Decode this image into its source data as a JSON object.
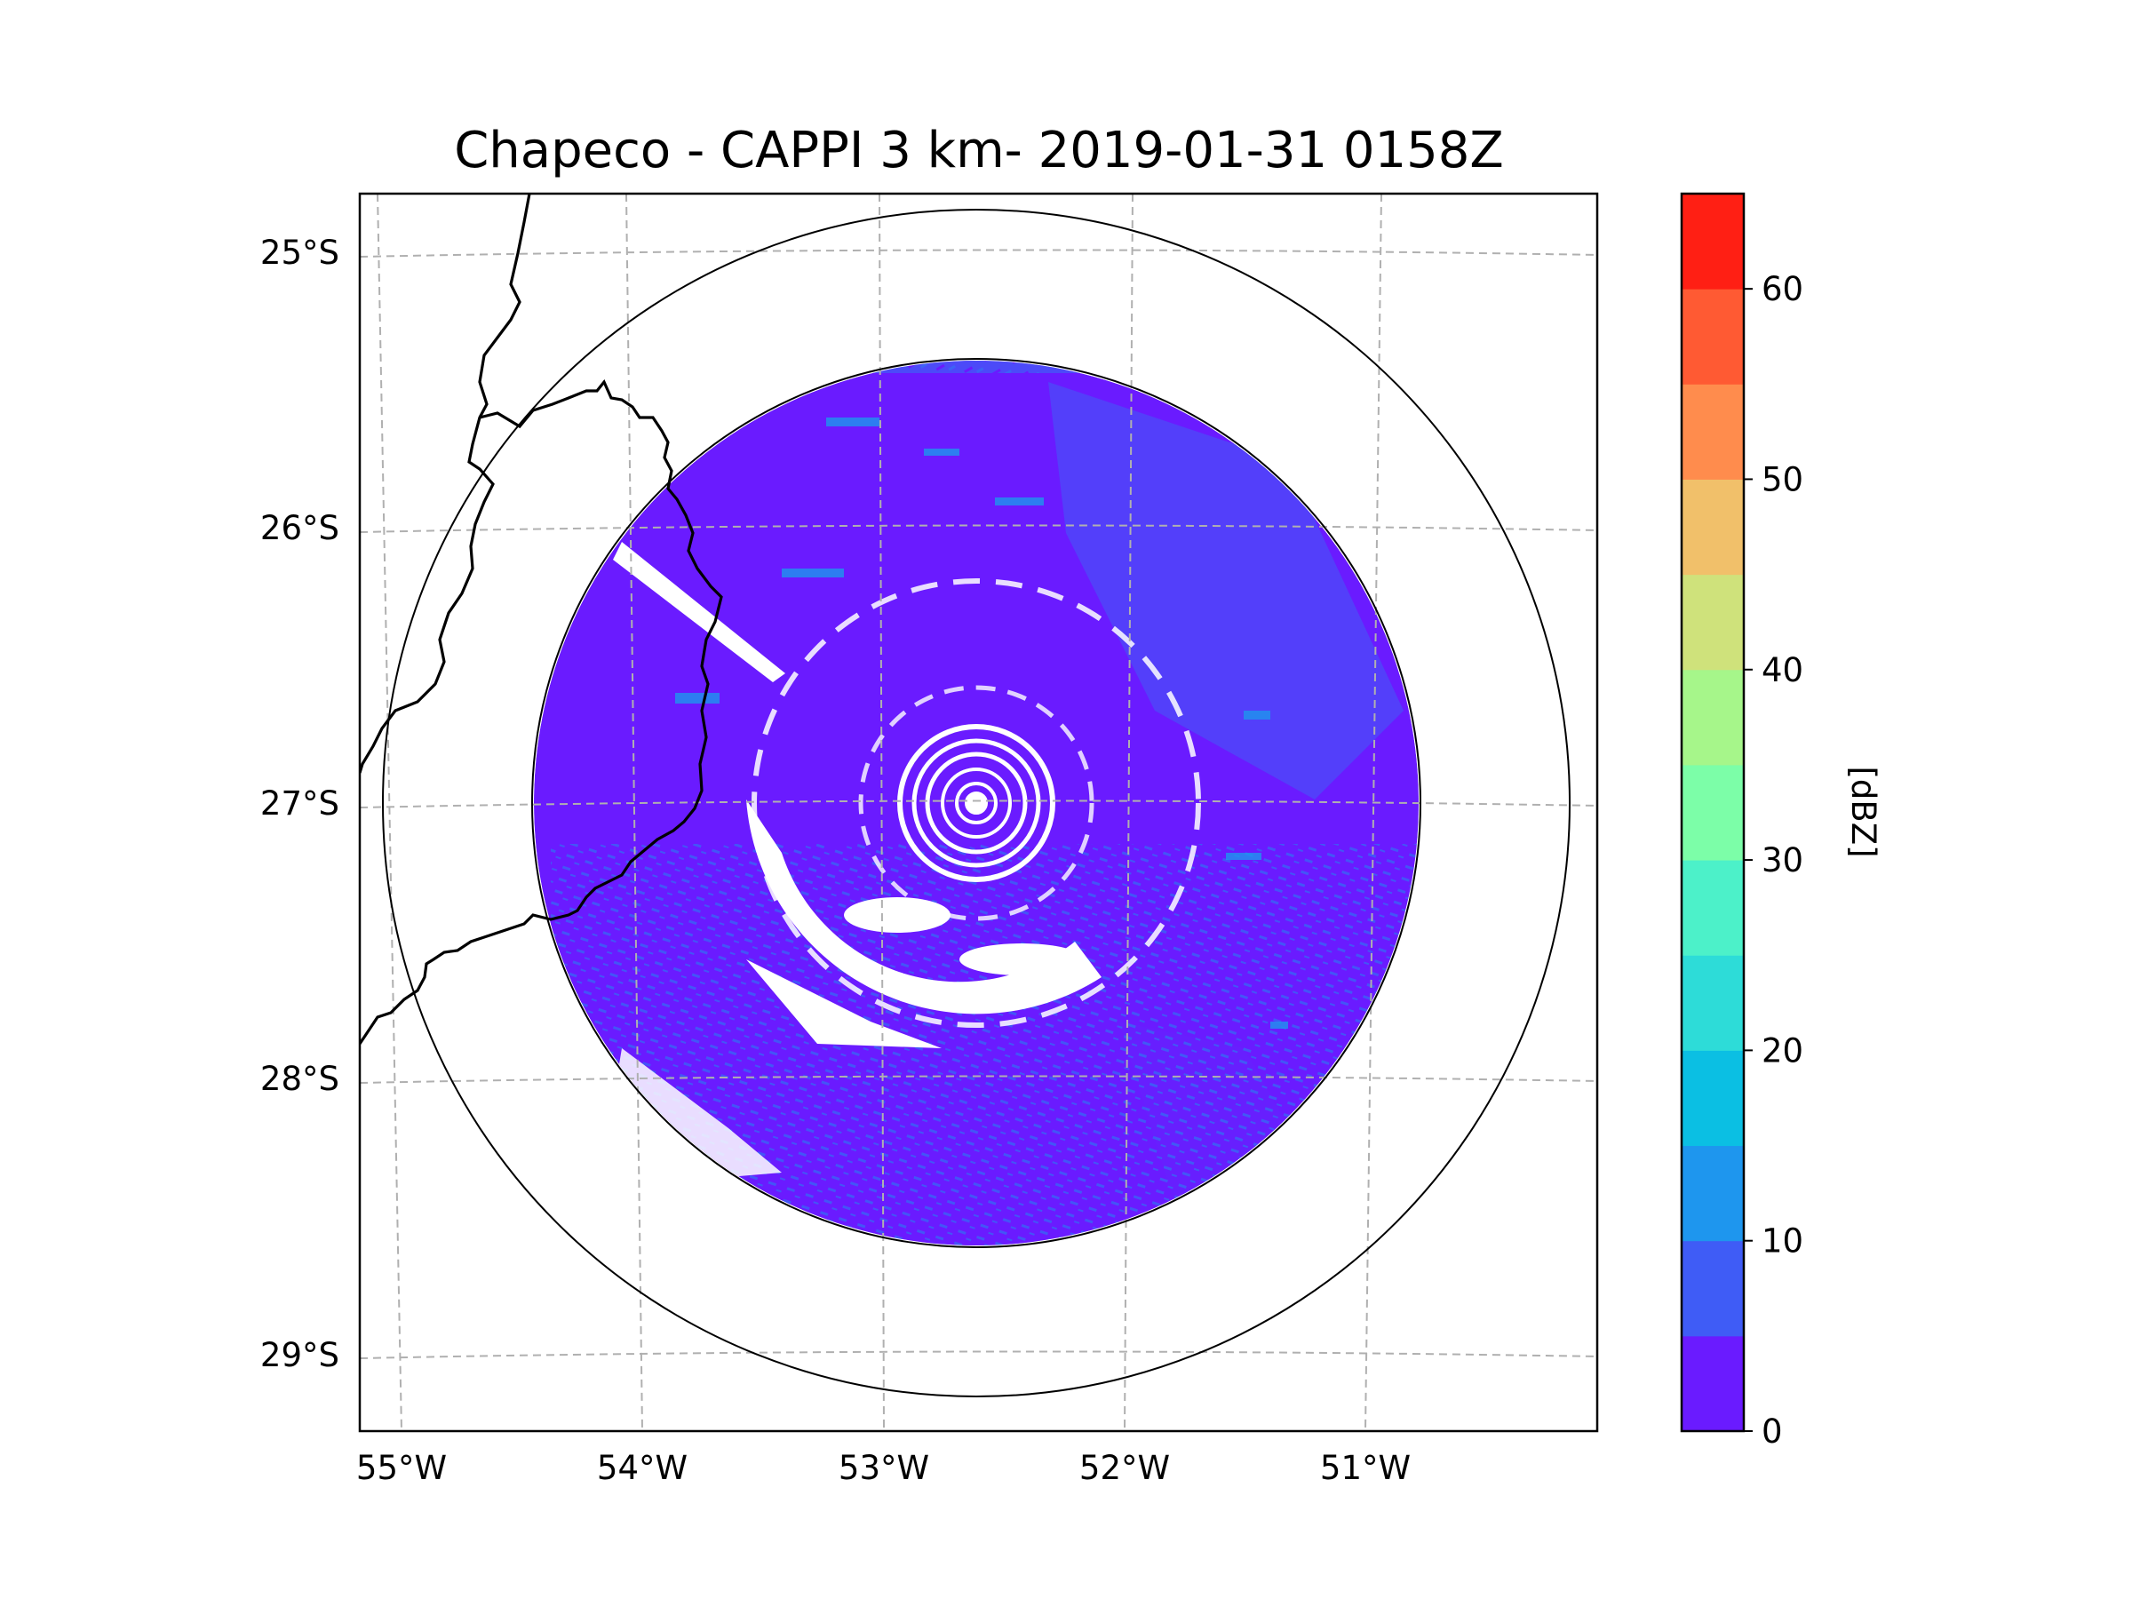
{
  "figure": {
    "title": "Chapeco - CAPPI 3 km- 2019-01-31 0158Z",
    "station": "Chapeco",
    "product": "CAPPI 3 km",
    "datetime": "2019-01-31 0158Z"
  },
  "map": {
    "lat_ticks": [
      "25°S",
      "26°S",
      "27°S",
      "28°S",
      "29°S"
    ],
    "lon_ticks": [
      "55°W",
      "54°W",
      "53°W",
      "52°W",
      "51°W"
    ],
    "lat_values": [
      -25,
      -26,
      -27,
      -28,
      -29
    ],
    "lon_values": [
      -55,
      -54,
      -53,
      -52,
      -51
    ],
    "extent": {
      "lon_min": -55.18,
      "lon_max": -50.08,
      "lat_min": -29.3,
      "lat_max": -24.78
    },
    "radar_center": {
      "lon": -52.6,
      "lat": -27.02
    },
    "gridlines": "dashed gray",
    "range_rings": "two concentric rings"
  },
  "colorbar": {
    "label": "[dBZ]",
    "tick_labels": [
      "0",
      "10",
      "20",
      "30",
      "40",
      "50",
      "60"
    ],
    "tick_values": [
      0,
      10,
      20,
      30,
      40,
      50,
      60
    ],
    "vmin": 0,
    "vmax": 65,
    "bins": [
      {
        "lo": 0,
        "hi": 5,
        "color": "#6a1bff"
      },
      {
        "lo": 5,
        "hi": 10,
        "color": "#3f5cf6"
      },
      {
        "lo": 10,
        "hi": 15,
        "color": "#1e96ee"
      },
      {
        "lo": 15,
        "hi": 20,
        "color": "#0bbfe3"
      },
      {
        "lo": 20,
        "hi": 25,
        "color": "#2ddcd8"
      },
      {
        "lo": 25,
        "hi": 30,
        "color": "#4cf1c9"
      },
      {
        "lo": 30,
        "hi": 35,
        "color": "#7cfea8"
      },
      {
        "lo": 35,
        "hi": 40,
        "color": "#a6f68a"
      },
      {
        "lo": 40,
        "hi": 45,
        "color": "#cfe27b"
      },
      {
        "lo": 45,
        "hi": 50,
        "color": "#f1c06a"
      },
      {
        "lo": 50,
        "hi": 55,
        "color": "#ff8c4d"
      },
      {
        "lo": 55,
        "hi": 60,
        "color": "#ff5a33"
      },
      {
        "lo": 60,
        "hi": 65,
        "color": "#ff1f14"
      }
    ]
  },
  "colors": {
    "echo_low": "#6a1bff",
    "echo_mid": "#3f5cf6",
    "echo_cyan": "#1e96ee",
    "grid": "#b0b0b0",
    "border": "#000000"
  }
}
